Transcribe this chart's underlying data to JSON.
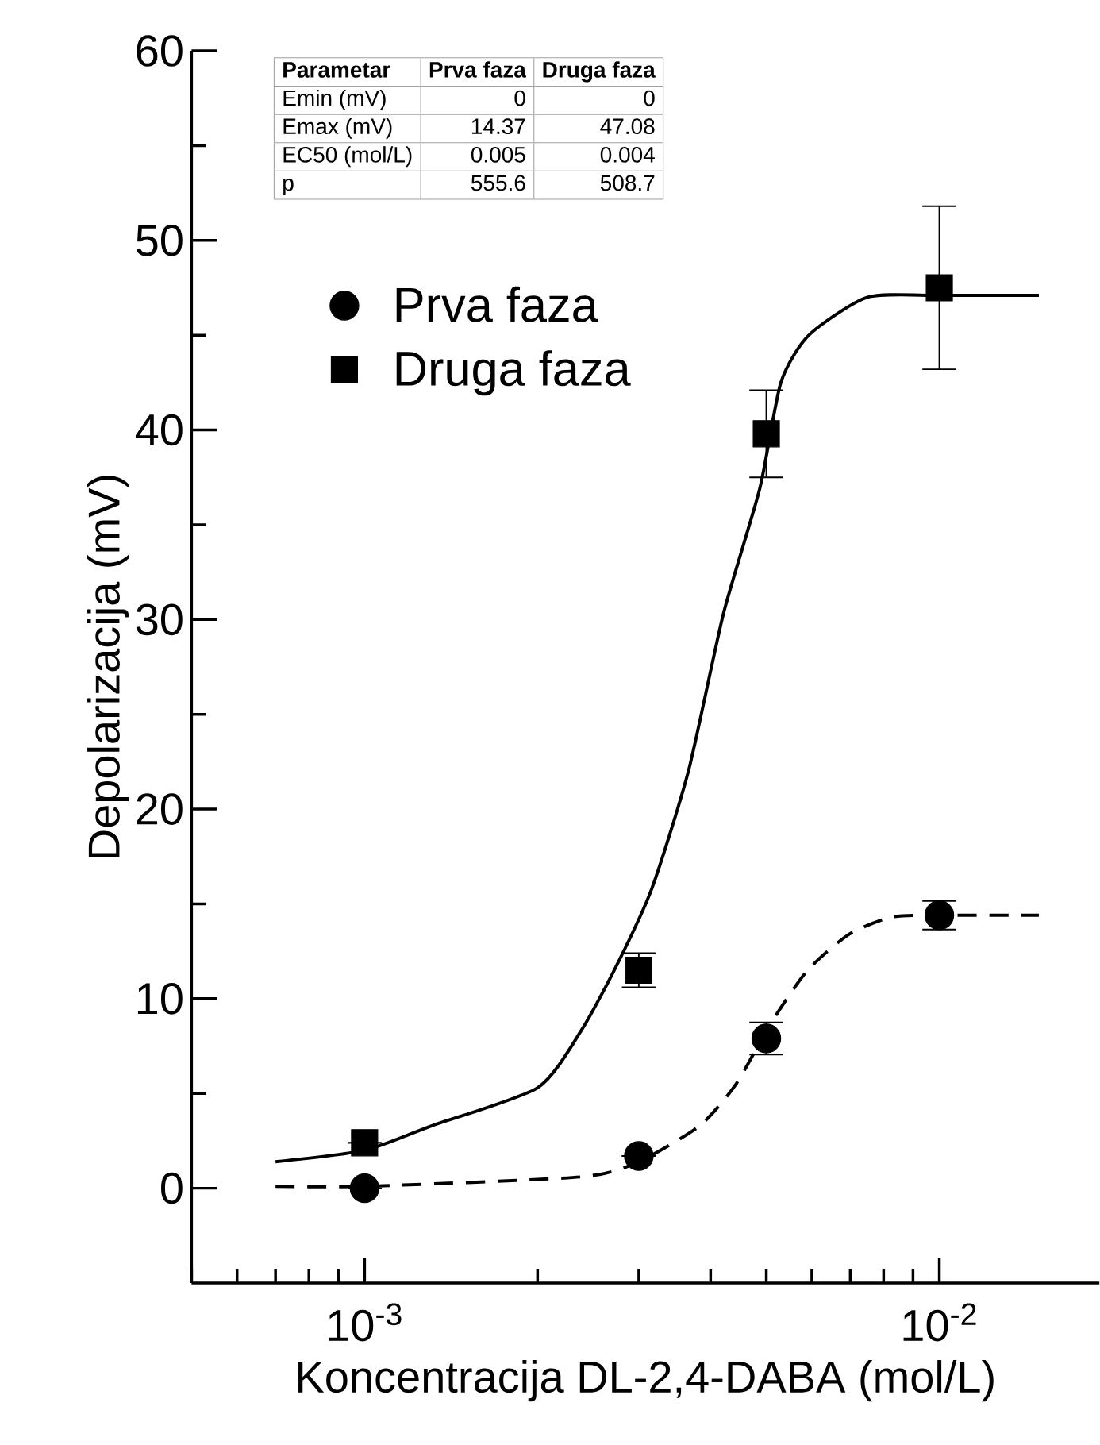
{
  "chart_data": {
    "type": "scatter",
    "xlabel": "Koncentracija DL-2,4-DABA (mol/L)",
    "ylabel": "Depolarizacija (mV)",
    "log": "x",
    "xlim": [
      0.0005,
      0.019
    ],
    "xticks": [
      {
        "value": 0.001,
        "label": "10$^{-3}$"
      },
      {
        "value": 0.01,
        "label": "10$^{-2}$"
      }
    ],
    "ylim": [
      -5,
      60
    ],
    "yticks": [
      0,
      10,
      20,
      30,
      40,
      50,
      60
    ],
    "legend": "top left",
    "annotations": [
      "Parametar",
      "Prva faza",
      "Druga faza",
      "Emin (mV)",
      "0",
      "0",
      "Emax (mV)",
      "14.37",
      "47.08",
      "EC50 (mol/L)",
      "0.005",
      "0.004",
      "p",
      "555.6",
      "508.7"
    ],
    "series": [
      {
        "type": "line",
        "line_style": "dashed",
        "color": "#000000",
        "x": [
          0.0007,
          0.001,
          0.00238,
          0.003,
          0.00383,
          0.00443,
          0.00509,
          0.0059,
          0.00697,
          0.00826,
          0.01,
          0.0149
        ],
        "values": [
          0.1,
          0.1,
          0.6,
          1.4,
          3.3,
          5.5,
          8.7,
          11.5,
          13.4,
          14.3,
          14.4,
          14.4
        ]
      },
      {
        "type": "line",
        "line_style": "solid",
        "color": "#000000",
        "x": [
          0.0007,
          0.001,
          0.00131,
          0.002,
          0.00238,
          0.00275,
          0.00316,
          0.00366,
          0.00421,
          0.00487,
          0.0053,
          0.00593,
          0.0075,
          0.01,
          0.0149
        ],
        "values": [
          1.4,
          2.0,
          3.3,
          5.3,
          8.3,
          11.8,
          15.8,
          22.0,
          30.3,
          36.9,
          42.5,
          45.0,
          47.0,
          47.1,
          47.1
        ]
      },
      {
        "name": "Prva faza",
        "marker": "circle",
        "color": "#000000",
        "x": [
          0.001,
          0.003,
          0.005,
          0.01
        ],
        "values": [
          0,
          1.7,
          7.9,
          14.4
        ],
        "errors": [
          null,
          null,
          0.85,
          0.75
        ]
      },
      {
        "name": "Druga faza",
        "marker": "square",
        "color": "#000000",
        "x": [
          0.001,
          0.003,
          0.005,
          0.01
        ],
        "values": [
          2.4,
          11.5,
          39.8,
          47.5
        ],
        "errors": [
          null,
          0.9,
          2.3,
          4.3
        ]
      }
    ]
  }
}
